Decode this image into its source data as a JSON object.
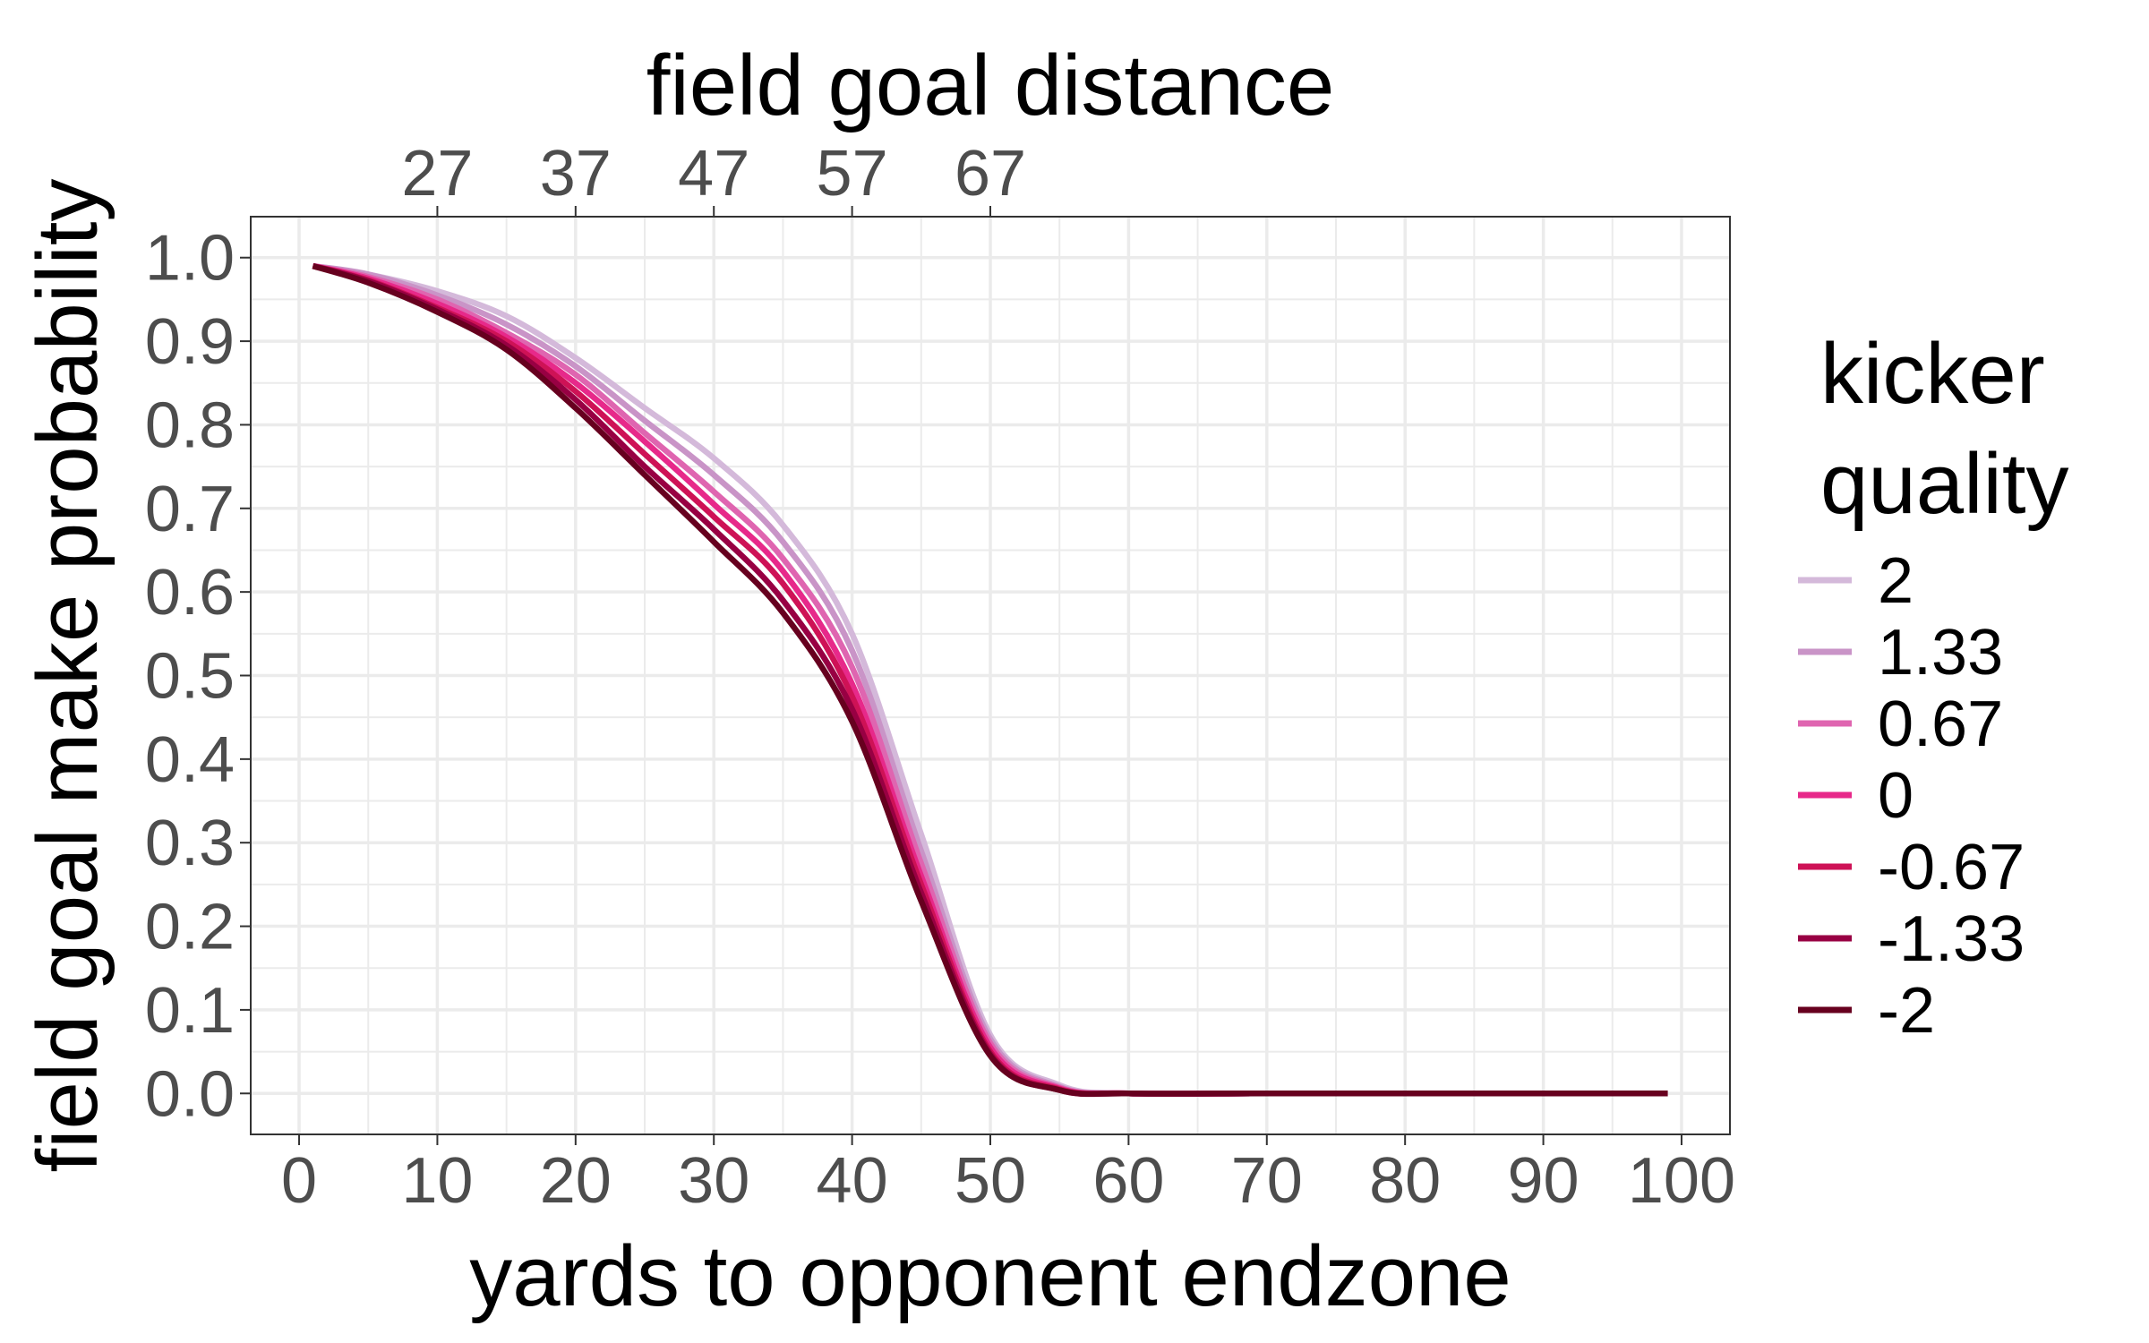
{
  "chart_data": {
    "type": "line",
    "title": "",
    "xlabel": "yards to opponent endzone",
    "ylabel": "field goal make probability",
    "secondary_xlabel": "field goal distance",
    "xlim": [
      -3.5,
      103.5
    ],
    "ylim": [
      -0.049,
      1.049
    ],
    "x_ticks": [
      0,
      10,
      20,
      30,
      40,
      50,
      60,
      70,
      80,
      90,
      100
    ],
    "x_tick_labels": [
      "0",
      "10",
      "20",
      "30",
      "40",
      "50",
      "60",
      "70",
      "80",
      "90",
      "100"
    ],
    "y_ticks": [
      0.0,
      0.1,
      0.2,
      0.3,
      0.4,
      0.5,
      0.6,
      0.7,
      0.8,
      0.9,
      1.0
    ],
    "y_tick_labels": [
      "0.0",
      "0.1",
      "0.2",
      "0.3",
      "0.4",
      "0.5",
      "0.6",
      "0.7",
      "0.8",
      "0.9",
      "1.0"
    ],
    "secondary_x_ticks": [
      10,
      20,
      30,
      40,
      50
    ],
    "secondary_x_tick_labels": [
      "27",
      "37",
      "47",
      "57",
      "67"
    ],
    "grid": true,
    "legend": {
      "title_lines": [
        "kicker",
        "quality"
      ],
      "placement": "right"
    },
    "x": [
      1,
      5,
      10,
      15,
      20,
      25,
      30,
      35,
      40,
      45,
      50,
      55,
      60,
      70,
      80,
      90,
      99
    ],
    "series": [
      {
        "name": "2",
        "color": "#d4b9da",
        "values": [
          0.99,
          0.98,
          0.96,
          0.93,
          0.88,
          0.82,
          0.76,
          0.68,
          0.55,
          0.31,
          0.07,
          0.01,
          0.0,
          0.0,
          0.0,
          0.0,
          0.0
        ]
      },
      {
        "name": "1.33",
        "color": "#c994c7",
        "values": [
          0.99,
          0.98,
          0.955,
          0.92,
          0.87,
          0.805,
          0.74,
          0.66,
          0.53,
          0.29,
          0.065,
          0.008,
          0.0,
          0.0,
          0.0,
          0.0,
          0.0
        ]
      },
      {
        "name": "0.67",
        "color": "#df65b0",
        "values": [
          0.99,
          0.977,
          0.95,
          0.91,
          0.86,
          0.79,
          0.72,
          0.64,
          0.51,
          0.275,
          0.06,
          0.007,
          0.0,
          0.0,
          0.0,
          0.0,
          0.0
        ]
      },
      {
        "name": "0",
        "color": "#e7298a",
        "values": [
          0.99,
          0.975,
          0.945,
          0.905,
          0.85,
          0.78,
          0.705,
          0.625,
          0.49,
          0.26,
          0.055,
          0.006,
          0.0,
          0.0,
          0.0,
          0.0,
          0.0
        ]
      },
      {
        "name": "-0.67",
        "color": "#ce1256",
        "values": [
          0.99,
          0.973,
          0.94,
          0.9,
          0.84,
          0.765,
          0.69,
          0.61,
          0.475,
          0.25,
          0.05,
          0.005,
          0.0,
          0.0,
          0.0,
          0.0,
          0.0
        ]
      },
      {
        "name": "-1.33",
        "color": "#980043",
        "values": [
          0.99,
          0.972,
          0.938,
          0.895,
          0.83,
          0.75,
          0.675,
          0.59,
          0.46,
          0.24,
          0.047,
          0.004,
          0.0,
          0.0,
          0.0,
          0.0,
          0.0
        ]
      },
      {
        "name": "-2",
        "color": "#67001f",
        "values": [
          0.99,
          0.97,
          0.935,
          0.89,
          0.82,
          0.74,
          0.66,
          0.575,
          0.445,
          0.23,
          0.045,
          0.004,
          0.0,
          0.0,
          0.0,
          0.0,
          0.0
        ]
      }
    ]
  }
}
